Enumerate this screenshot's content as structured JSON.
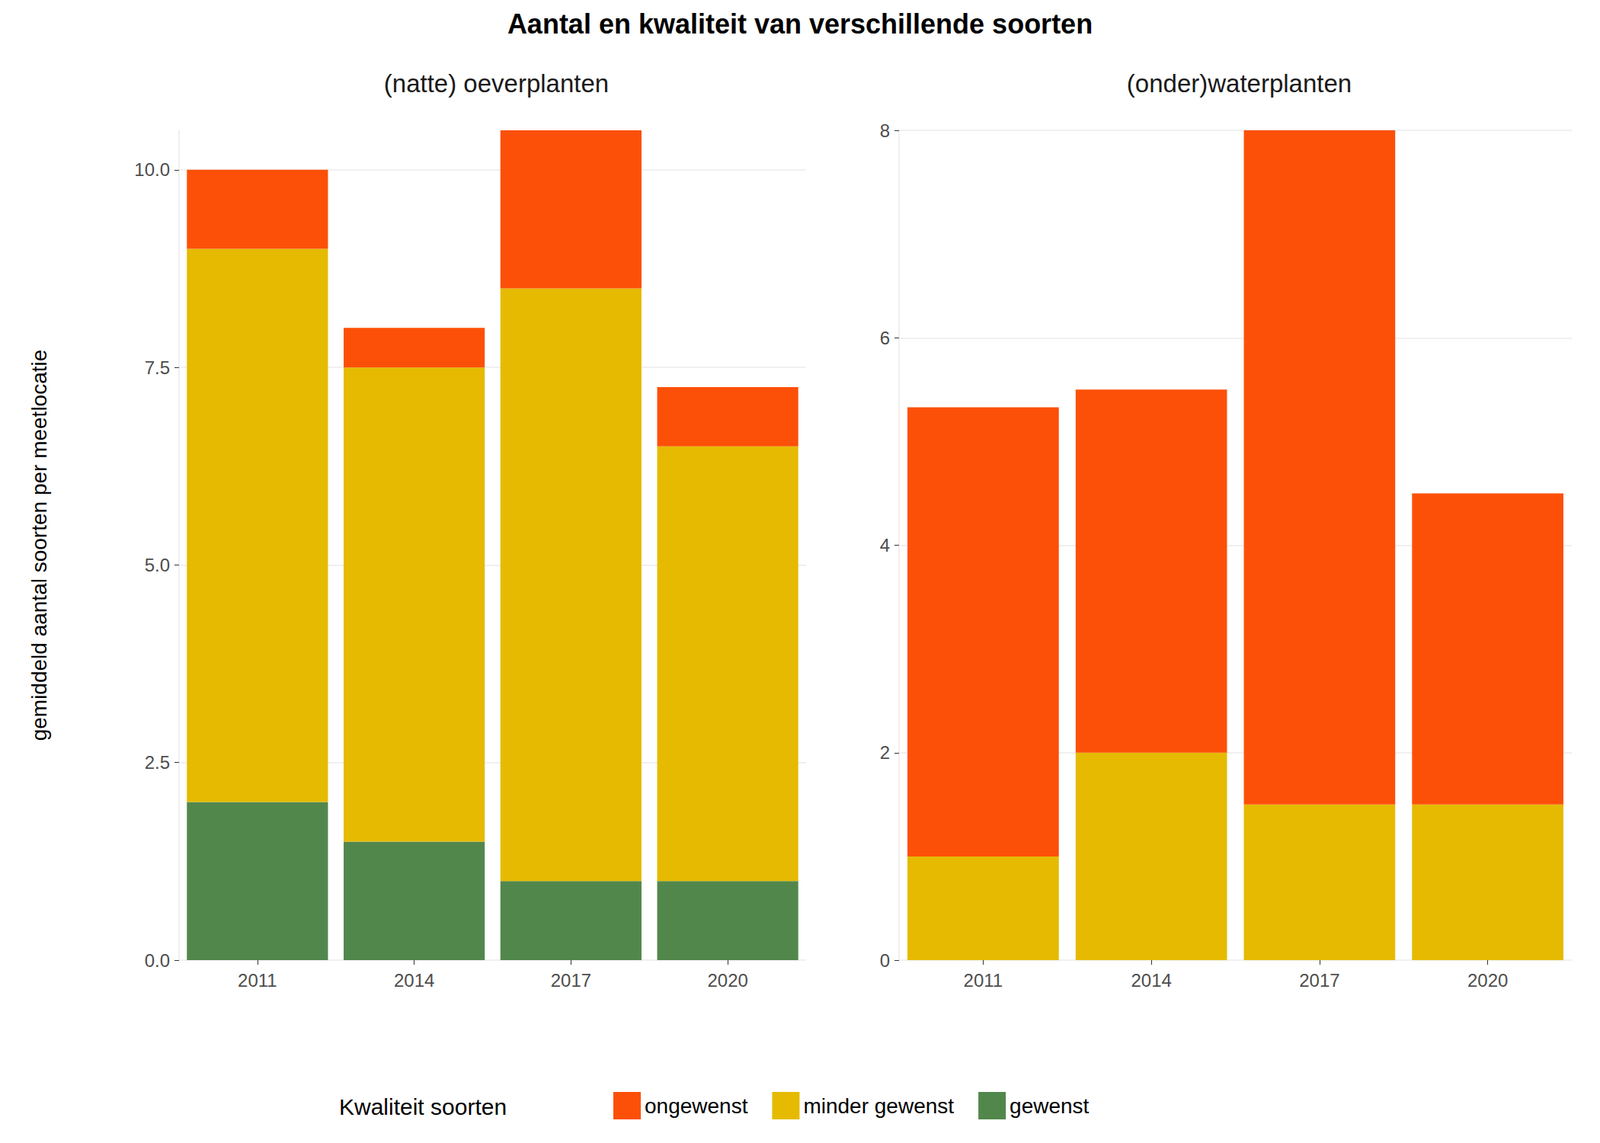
{
  "title": "Aantal en kwaliteit van verschillende soorten",
  "ylabel": "gemiddeld aantal soorten per meetlocatie",
  "legend_title": "Kwaliteit soorten",
  "legend": "bottom",
  "chart_data": [
    {
      "type": "bar",
      "subtitle": "(natte) oeverplanten",
      "stacked": true,
      "grid": true,
      "categories": [
        "2011",
        "2014",
        "2017",
        "2020"
      ],
      "series": [
        {
          "name": "gewenst",
          "color": "#52874c",
          "values": [
            2,
            1.5,
            1,
            1
          ]
        },
        {
          "name": "minder gewenst",
          "color": "#e5ba00",
          "values": [
            7,
            6,
            7.5,
            5.5
          ]
        },
        {
          "name": "ongewenst",
          "color": "#fc5008",
          "values": [
            1,
            0.5,
            2,
            0.75
          ]
        }
      ],
      "ylim": [
        0,
        10.5
      ],
      "yticks": [
        {
          "value": 0,
          "label": "0.0"
        },
        {
          "value": 2.5,
          "label": "2.5"
        },
        {
          "value": 5,
          "label": "5.0"
        },
        {
          "value": 7.5,
          "label": "7.5"
        },
        {
          "value": 10,
          "label": "10.0"
        }
      ]
    },
    {
      "type": "bar",
      "subtitle": "(onder)waterplanten",
      "stacked": true,
      "grid": true,
      "categories": [
        "2011",
        "2014",
        "2017",
        "2020"
      ],
      "series": [
        {
          "name": "minder gewenst",
          "color": "#e5ba00",
          "values": [
            1,
            2,
            1.5,
            1.5
          ]
        },
        {
          "name": "ongewenst",
          "color": "#fc5008",
          "values": [
            4.33,
            3.5,
            6.5,
            3
          ]
        }
      ],
      "ylim": [
        0,
        8
      ],
      "yticks": [
        0,
        2,
        4,
        6,
        8
      ]
    }
  ]
}
